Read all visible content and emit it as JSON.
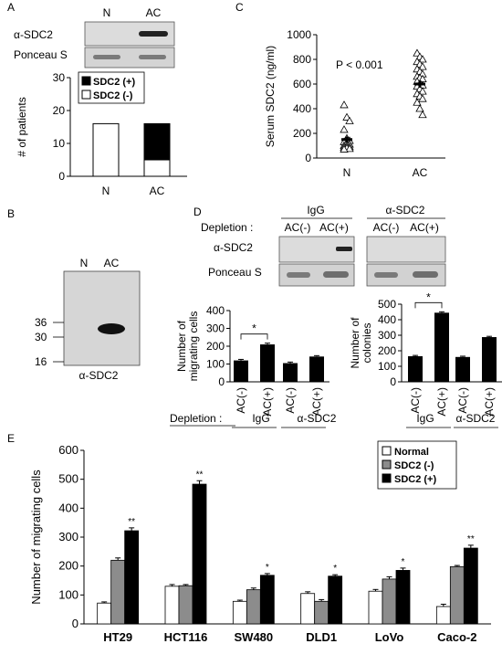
{
  "panel_labels": {
    "a": "A",
    "b": "B",
    "c": "C",
    "d": "D",
    "e": "E"
  },
  "panel_a": {
    "blot_lane_labels": [
      "N",
      "AC"
    ],
    "blot_row_labels": [
      "α-SDC2",
      "Ponceau S"
    ]
  },
  "panel_b": {
    "lane_labels": [
      "N",
      "AC"
    ],
    "marker_labels": [
      "36",
      "30",
      "16"
    ],
    "antibody_label": "α-SDC2"
  },
  "panel_c": {
    "p_value_label": "P < 0.001"
  },
  "panel_d": {
    "antibody_groups": [
      "IgG",
      "α-SDC2"
    ],
    "depletion_label": "Depletion :",
    "depletion_conditions": [
      "AC(-)",
      "AC(+)",
      "AC(-)",
      "AC(+)"
    ],
    "blot_row_labels": [
      "α-SDC2",
      "Ponceau S"
    ],
    "x_group_labels": [
      "IgG",
      "α-SDC2"
    ],
    "x_depletion_label": "Depletion :"
  },
  "colors": {
    "black": "#000000",
    "gray": "#8c8c8c",
    "white": "#ffffff"
  },
  "chart_data": [
    {
      "id": "A",
      "type": "bar",
      "stacked": true,
      "categories": [
        "N",
        "AC"
      ],
      "series": [
        {
          "name": "SDC2 (-)",
          "values": [
            16,
            5
          ],
          "color": "#ffffff"
        },
        {
          "name": "SDC2 (+)",
          "values": [
            0,
            11
          ],
          "color": "#000000"
        }
      ],
      "ylabel": "# of patients",
      "ylim": [
        0,
        30
      ],
      "yticks": [
        0,
        10,
        20,
        30
      ],
      "legend": "top-left"
    },
    {
      "id": "C",
      "type": "scatter",
      "categories": [
        "N",
        "AC"
      ],
      "ylabel": "Serum SDC2 (ng/ml)",
      "ylim": [
        0,
        1000
      ],
      "yticks": [
        0,
        200,
        400,
        600,
        800,
        1000
      ],
      "points": {
        "N": [
          430,
          330,
          300,
          230,
          160,
          140,
          130,
          120,
          110,
          100,
          95,
          90,
          85,
          80,
          75,
          70
        ],
        "AC": [
          850,
          820,
          800,
          780,
          760,
          740,
          720,
          700,
          680,
          660,
          650,
          640,
          620,
          600,
          590,
          580,
          560,
          540,
          520,
          500,
          480,
          450,
          400,
          350
        ]
      },
      "means": {
        "N": 150,
        "AC": 600
      },
      "sd": {
        "N": 25,
        "AC": 30
      }
    },
    {
      "id": "D-migration",
      "type": "bar",
      "categories": [
        "AC(-)",
        "AC(+)",
        "AC(-)",
        "AC(+)"
      ],
      "values": [
        120,
        210,
        105,
        142
      ],
      "errors": [
        6,
        7,
        6,
        5
      ],
      "ylabel": "Number of migrating cells",
      "ylim": [
        0,
        400
      ],
      "yticks": [
        0,
        100,
        200,
        300,
        400
      ],
      "groups": [
        "IgG",
        "α-SDC2"
      ],
      "annotation": "*"
    },
    {
      "id": "D-colonies",
      "type": "bar",
      "categories": [
        "AC(-)",
        "AC(+)",
        "AC(-)",
        "AC(+)"
      ],
      "values": [
        165,
        445,
        160,
        288
      ],
      "errors": [
        5,
        6,
        5,
        5
      ],
      "ylabel": "Number of colonies",
      "ylim": [
        0,
        500
      ],
      "yticks": [
        0,
        100,
        200,
        300,
        400,
        500
      ],
      "groups": [
        "IgG",
        "α-SDC2"
      ],
      "annotation": "*"
    },
    {
      "id": "E",
      "type": "bar",
      "categories": [
        "HT29",
        "HCT116",
        "SW480",
        "DLD1",
        "LoVo",
        "Caco-2"
      ],
      "series": [
        {
          "name": "Normal",
          "values": [
            72,
            130,
            78,
            105,
            113,
            60
          ],
          "errors": [
            4,
            6,
            4,
            6,
            6,
            8
          ],
          "color": "#ffffff"
        },
        {
          "name": "SDC2 (-)",
          "values": [
            220,
            132,
            118,
            78,
            155,
            198
          ],
          "errors": [
            8,
            4,
            6,
            6,
            8,
            4
          ],
          "color": "#8c8c8c"
        },
        {
          "name": "SDC2 (+)",
          "values": [
            322,
            483,
            168,
            165,
            185,
            262
          ],
          "errors": [
            10,
            12,
            6,
            5,
            8,
            10
          ],
          "color": "#000000"
        }
      ],
      "significance": [
        "**",
        "**",
        "*",
        "*",
        "*",
        "**"
      ],
      "ylabel": "Number of migrating cells",
      "ylim": [
        0,
        600
      ],
      "yticks": [
        0,
        100,
        200,
        300,
        400,
        500,
        600
      ],
      "legend": "top-right"
    }
  ]
}
